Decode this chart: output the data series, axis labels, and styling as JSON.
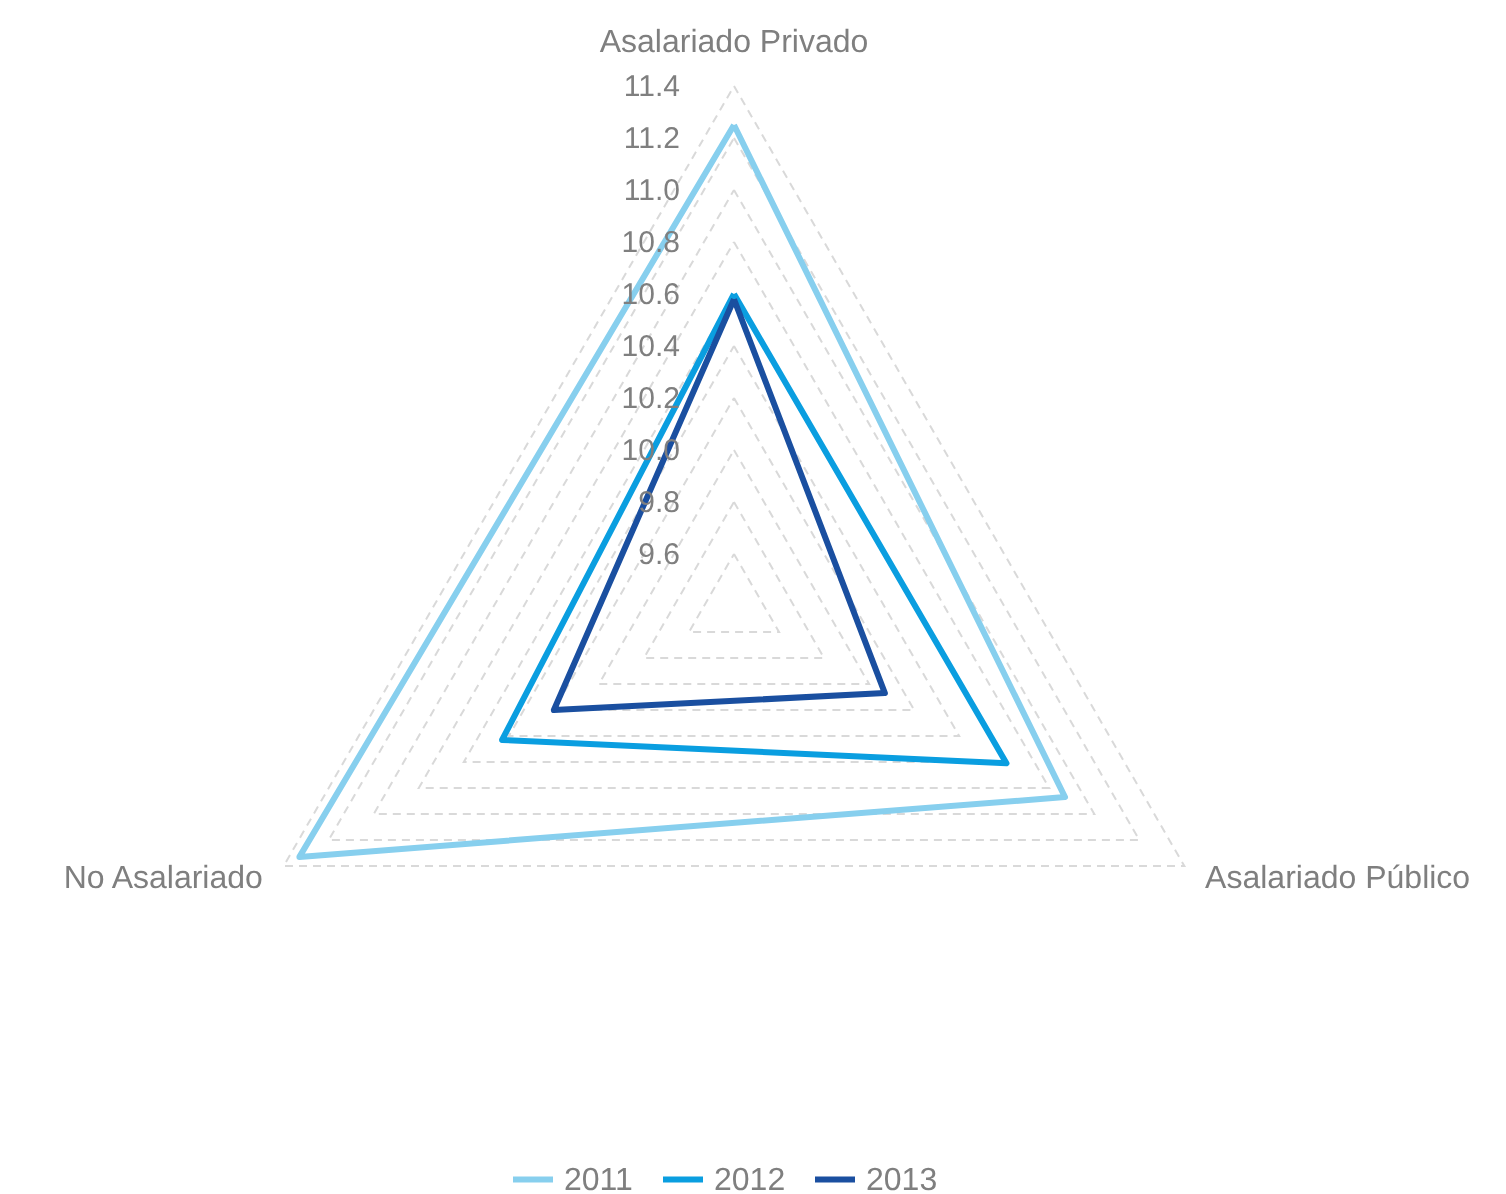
{
  "chart_data": {
    "type": "radar",
    "categories": [
      "Asalariado Privado",
      "Asalariado Público",
      "No Asalariado"
    ],
    "series": [
      {
        "name": "2011",
        "color": "#87cfee",
        "values": [
          11.25,
          10.87,
          11.33
        ]
      },
      {
        "name": "2012",
        "color": "#0a9ee0",
        "values": [
          10.6,
          10.61,
          10.43
        ]
      },
      {
        "name": "2013",
        "color": "#1a4fa0",
        "values": [
          10.58,
          10.07,
          10.2
        ]
      }
    ],
    "ylim": [
      9.4,
      11.4
    ],
    "yticks": [
      9.6,
      9.8,
      {
        "value": 10,
        "label": "10.0"
      },
      10.2,
      10.4,
      10.6,
      10.8,
      {
        "value": 11,
        "label": "11.0"
      },
      11.2,
      11.4
    ],
    "grid": true,
    "legend": "bottom"
  }
}
